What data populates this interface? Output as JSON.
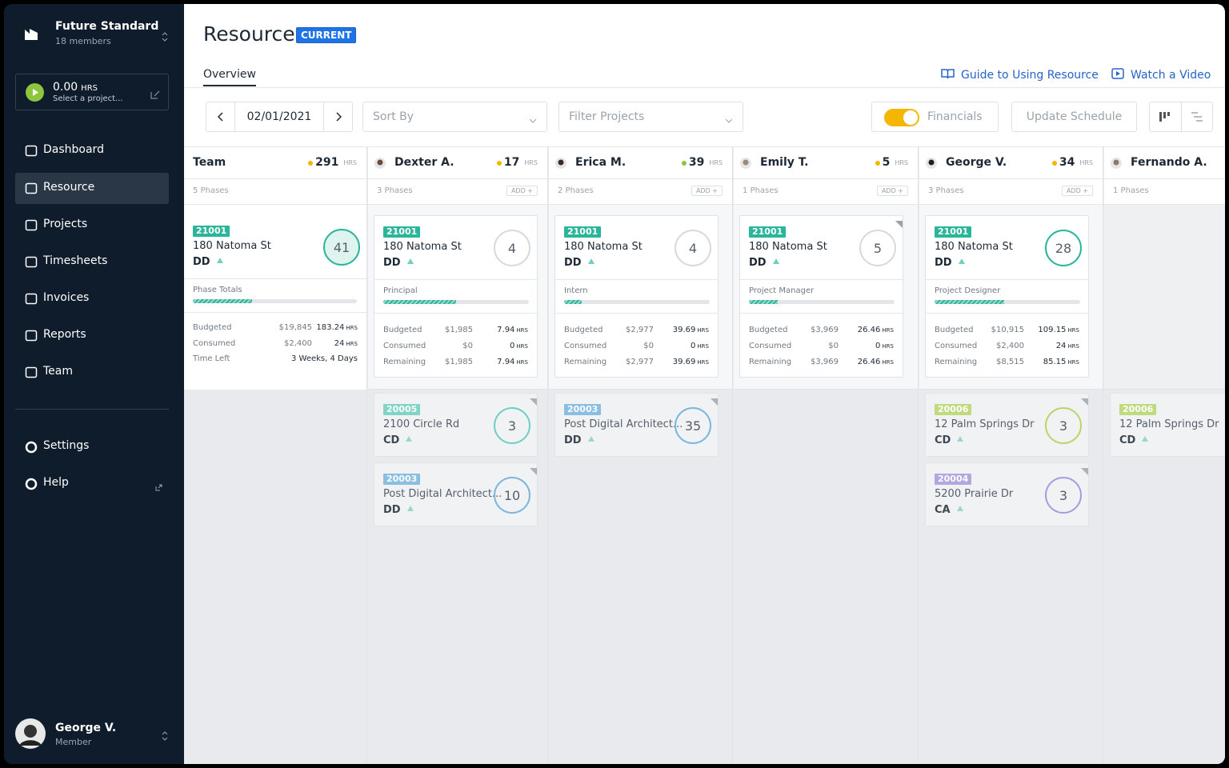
{
  "sidebar": {
    "org": "Future Standard",
    "members": "18 members",
    "timer": {
      "hours": "0.00",
      "unit": "HRS",
      "prompt": "Select a project..."
    },
    "nav": [
      "Dashboard",
      "Resource",
      "Projects",
      "Timesheets",
      "Invoices",
      "Reports",
      "Team"
    ],
    "footer_nav": [
      "Settings",
      "Help"
    ],
    "user": {
      "name": "George V.",
      "role": "Member"
    }
  },
  "header": {
    "title": "Resource",
    "badge": "CURRENT",
    "tab": "Overview",
    "links": [
      "Guide to Using Resource",
      "Watch a Video"
    ]
  },
  "toolbar": {
    "date": "02/01/2021",
    "sort": "Sort By",
    "filter": "Filter Projects",
    "toggle": "Financials",
    "button": "Update Schedule"
  },
  "board": {
    "unit": "HRS",
    "add": "ADD +",
    "columns": [
      {
        "name": "Team",
        "hours": 291,
        "phases": "5 Phases",
        "main": {
          "code": "21001",
          "color": "#2bb59a",
          "address": "180 Natoma St",
          "phase": "DD",
          "count": 41,
          "role": "Phase Totals",
          "rows": [
            {
              "label": "Budgeted",
              "cost": "$19,845",
              "hours": 183.24
            },
            {
              "label": "Consumed",
              "cost": "$2,400",
              "hours": 24
            },
            {
              "label": "Time Left",
              "value": "3 Weeks, 4 Days"
            }
          ]
        },
        "others": []
      },
      {
        "name": "Dexter A.",
        "hours": 17,
        "phases": "3 Phases",
        "main": {
          "code": "21001",
          "color": "#2bb59a",
          "address": "180 Natoma St",
          "phase": "DD",
          "count": 4,
          "role": "Principal",
          "rows": [
            {
              "label": "Budgeted",
              "cost": "$1,985",
              "hours": 7.94
            },
            {
              "label": "Consumed",
              "cost": "$0",
              "hours": 0
            },
            {
              "label": "Remaining",
              "cost": "$1,985",
              "hours": 7.94
            }
          ]
        },
        "others": [
          {
            "code": "20005",
            "color": "#6fcfc0",
            "address": "2100 Circle Rd",
            "phase": "CD",
            "count": 3
          },
          {
            "code": "20003",
            "color": "#7ab6de",
            "address": "Post Digital Architect...",
            "phase": "DD",
            "count": 10
          }
        ]
      },
      {
        "name": "Erica M.",
        "hours": 39,
        "phases": "2 Phases",
        "main": {
          "code": "21001",
          "color": "#2bb59a",
          "address": "180 Natoma St",
          "phase": "DD",
          "count": 4,
          "role": "Intern",
          "rows": [
            {
              "label": "Budgeted",
              "cost": "$2,977",
              "hours": 39.69
            },
            {
              "label": "Consumed",
              "cost": "$0",
              "hours": 0
            },
            {
              "label": "Remaining",
              "cost": "$2,977",
              "hours": 39.69
            }
          ]
        },
        "others": [
          {
            "code": "20003",
            "color": "#7ab6de",
            "address": "Post Digital Architect...",
            "phase": "DD",
            "count": 35
          }
        ]
      },
      {
        "name": "Emily T.",
        "hours": 5,
        "phases": "1 Phases",
        "main": {
          "code": "21001",
          "color": "#2bb59a",
          "address": "180 Natoma St",
          "phase": "DD",
          "count": 5,
          "role": "Project Manager",
          "rows": [
            {
              "label": "Budgeted",
              "cost": "$3,969",
              "hours": 26.46
            },
            {
              "label": "Consumed",
              "cost": "$0",
              "hours": 0
            },
            {
              "label": "Remaining",
              "cost": "$3,969",
              "hours": 26.46
            }
          ]
        },
        "others": []
      },
      {
        "name": "George V.",
        "hours": 34,
        "phases": "3 Phases",
        "main": {
          "code": "21001",
          "color": "#2bb59a",
          "address": "180 Natoma St",
          "phase": "DD",
          "count": 28,
          "role": "Project Designer",
          "rows": [
            {
              "label": "Budgeted",
              "cost": "$10,915",
              "hours": 109.15
            },
            {
              "label": "Consumed",
              "cost": "$2,400",
              "hours": 24
            },
            {
              "label": "Remaining",
              "cost": "$8,515",
              "hours": 85.15
            }
          ]
        },
        "others": [
          {
            "code": "20006",
            "color": "#b9d66a",
            "address": "12 Palm Springs Dr",
            "phase": "CD",
            "count": 3
          },
          {
            "code": "20004",
            "color": "#a99be0",
            "address": "5200 Prairie Dr",
            "phase": "CA",
            "count": 3
          }
        ]
      },
      {
        "name": "Fernando A.",
        "phases": "1 Phases",
        "others": [
          {
            "code": "20006",
            "color": "#b9d66a",
            "address": "12 Palm Springs Dr",
            "phase": "CD"
          }
        ]
      }
    ]
  }
}
